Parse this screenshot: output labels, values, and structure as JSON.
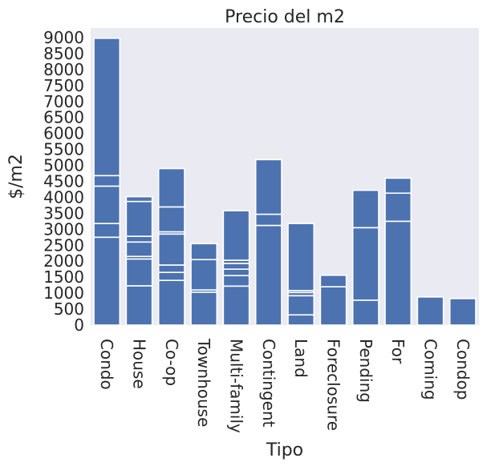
{
  "chart_data": {
    "type": "bar",
    "title": "Precio del m2",
    "xlabel": "Tipo",
    "ylabel": "$/m2",
    "ylim": [
      0,
      9300
    ],
    "yticks": [
      0,
      500,
      1000,
      1500,
      2000,
      2500,
      3000,
      3500,
      4000,
      4500,
      5000,
      5500,
      6000,
      6500,
      7000,
      7500,
      8000,
      8500,
      9000
    ],
    "grid": false,
    "bar_color": "#4c72b0",
    "segment_edge_color": "#ffffff",
    "plot_background": "#eaeaf2",
    "categories": [
      "Condo",
      "House",
      "Co-op",
      "Townhouse",
      "Multi-family",
      "Contingent",
      "Land",
      "Foreclosure",
      "Pending",
      "For",
      "Coming",
      "Condop"
    ],
    "values": [
      8980,
      4020,
      4900,
      2550,
      3580,
      5180,
      3180,
      1560,
      4220,
      4600,
      880,
      830
    ],
    "segments": [
      [
        2750,
        3180,
        4350,
        4680,
        8980
      ],
      [
        1230,
        2070,
        2150,
        2600,
        2780,
        3870,
        4020
      ],
      [
        1400,
        1650,
        1880,
        2850,
        2920,
        3700,
        4900
      ],
      [
        1030,
        1100,
        2050,
        2550
      ],
      [
        1220,
        1550,
        1750,
        1930,
        2030,
        3580
      ],
      [
        3120,
        3470,
        5180
      ],
      [
        320,
        920,
        1020,
        1080,
        3180
      ],
      [
        1200,
        1560
      ],
      [
        780,
        3050,
        4220
      ],
      [
        3250,
        4130,
        4600
      ],
      [
        880
      ],
      [
        830
      ]
    ]
  }
}
